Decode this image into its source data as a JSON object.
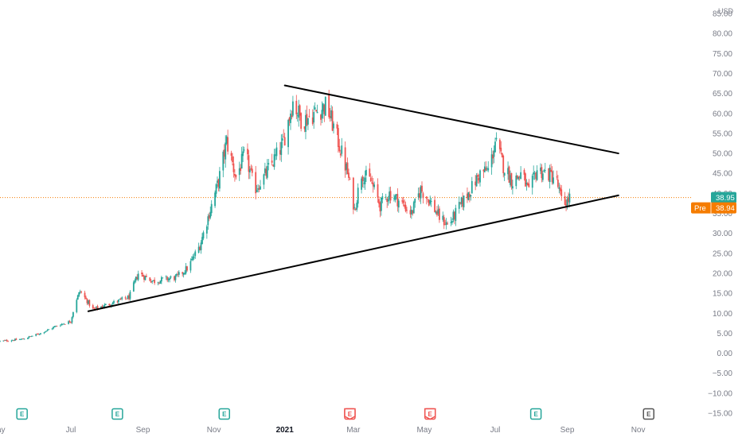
{
  "chart_data": {
    "type": "candlestick",
    "currency": "USD",
    "colors": {
      "up": "#26a69a",
      "down": "#ef5350",
      "trendline": "#000000",
      "last_price": "#26a69a",
      "pre_market": "#f57c00",
      "axis_text": "#787b86"
    },
    "x_labels": [
      "ay",
      "Jul",
      "Sep",
      "Nov",
      "2021",
      "Mar",
      "May",
      "Jul",
      "Sep",
      "Nov"
    ],
    "y_ticks": [
      "85.00",
      "80.00",
      "75.00",
      "70.00",
      "65.00",
      "60.00",
      "55.00",
      "50.00",
      "45.00",
      "40.00",
      "35.00",
      "30.00",
      "25.00",
      "20.00",
      "15.00",
      "10.00",
      "5.00",
      "0.00",
      "−5.00",
      "−10.00",
      "−15.00"
    ],
    "y_range": [
      -15,
      85
    ],
    "last_price": {
      "value": 38.95,
      "label": "38.95"
    },
    "pre_market": {
      "tag": "Pre",
      "value": 38.94,
      "label": "38.94"
    },
    "close_path": [
      [
        "2020-05-01",
        3.0
      ],
      [
        "2020-05-20",
        3.5
      ],
      [
        "2020-06-05",
        5.0
      ],
      [
        "2020-06-20",
        7.0
      ],
      [
        "2020-07-01",
        8.0
      ],
      [
        "2020-07-05",
        13.0
      ],
      [
        "2020-07-09",
        15.5
      ],
      [
        "2020-07-20",
        11.0
      ],
      [
        "2020-08-05",
        12.5
      ],
      [
        "2020-08-20",
        14.0
      ],
      [
        "2020-08-28",
        20.0
      ],
      [
        "2020-09-10",
        18.0
      ],
      [
        "2020-09-30",
        19.0
      ],
      [
        "2020-10-10",
        21.5
      ],
      [
        "2020-10-20",
        27.0
      ],
      [
        "2020-10-28",
        35.0
      ],
      [
        "2020-11-05",
        43.0
      ],
      [
        "2020-11-12",
        53.0
      ],
      [
        "2020-11-20",
        44.0
      ],
      [
        "2020-11-28",
        50.0
      ],
      [
        "2020-12-06",
        41.0
      ],
      [
        "2020-12-14",
        44.0
      ],
      [
        "2020-12-22",
        48.0
      ],
      [
        "2020-12-30",
        52.0
      ],
      [
        "2021-01-08",
        63.0
      ],
      [
        "2021-01-16",
        58.0
      ],
      [
        "2021-01-26",
        60.0
      ],
      [
        "2021-02-06",
        62.0
      ],
      [
        "2021-02-16",
        53.0
      ],
      [
        "2021-02-24",
        45.0
      ],
      [
        "2021-03-02",
        36.0
      ],
      [
        "2021-03-08",
        45.0
      ],
      [
        "2021-03-16",
        43.0
      ],
      [
        "2021-03-24",
        37.0
      ],
      [
        "2021-04-01",
        40.0
      ],
      [
        "2021-04-10",
        38.0
      ],
      [
        "2021-04-20",
        35.0
      ],
      [
        "2021-04-28",
        41.0
      ],
      [
        "2021-05-06",
        38.0
      ],
      [
        "2021-05-14",
        34.0
      ],
      [
        "2021-05-22",
        32.0
      ],
      [
        "2021-06-01",
        37.0
      ],
      [
        "2021-06-10",
        41.0
      ],
      [
        "2021-06-18",
        45.0
      ],
      [
        "2021-06-26",
        46.0
      ],
      [
        "2021-07-01",
        53.0
      ],
      [
        "2021-07-08",
        47.0
      ],
      [
        "2021-07-16",
        43.0
      ],
      [
        "2021-07-24",
        45.0
      ],
      [
        "2021-07-30",
        40.0
      ],
      [
        "2021-08-06",
        46.0
      ],
      [
        "2021-08-14",
        45.0
      ],
      [
        "2021-08-22",
        44.0
      ],
      [
        "2021-08-28",
        37.0
      ],
      [
        "2021-09-01",
        38.0
      ],
      [
        "2021-09-03",
        38.95
      ]
    ],
    "trendlines": [
      {
        "from": [
          "2020-07-16",
          10.5
        ],
        "to": [
          "2021-10-15",
          39.5
        ]
      },
      {
        "from": [
          "2021-01-01",
          67.0
        ],
        "to": [
          "2021-10-15",
          50.0
        ]
      }
    ],
    "events": [
      {
        "date": "2020-05-20",
        "label": "E",
        "kind": "earnings-past"
      },
      {
        "date": "2020-08-10",
        "label": "E",
        "kind": "earnings-past"
      },
      {
        "date": "2020-11-10",
        "label": "E",
        "kind": "earnings-past"
      },
      {
        "date": "2021-02-26",
        "label": "E",
        "kind": "earnings-miss"
      },
      {
        "date": "2021-05-06",
        "label": "E",
        "kind": "earnings-miss"
      },
      {
        "date": "2021-08-05",
        "label": "E",
        "kind": "earnings-past"
      },
      {
        "date": "2021-11-10",
        "label": "E",
        "kind": "earnings-upcoming"
      }
    ]
  }
}
